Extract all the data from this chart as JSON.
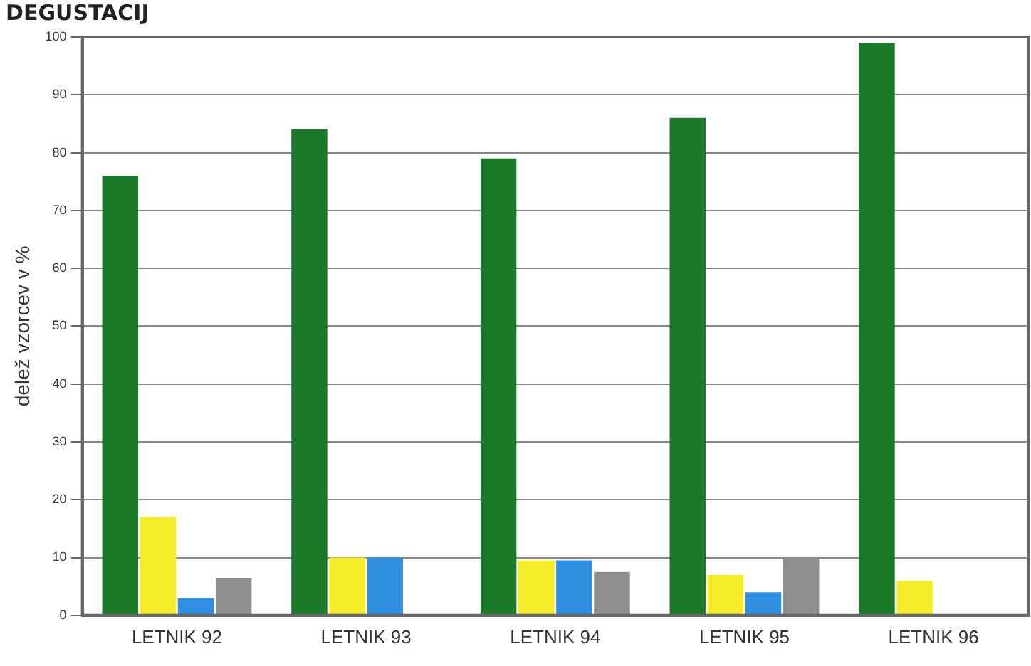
{
  "chart_data": {
    "type": "bar",
    "title": "DEGUSTACIJ",
    "ylabel": "delež vzorcev v %",
    "categories": [
      "LETNIK 92",
      "LETNIK 93",
      "LETNIK 94",
      "LETNIK 95",
      "LETNIK 96"
    ],
    "series": [
      {
        "color": "#1a7a2a",
        "values": [
          76,
          84,
          79,
          86,
          99
        ]
      },
      {
        "color": "#f5ec2a",
        "values": [
          17,
          10,
          9.5,
          7,
          6
        ]
      },
      {
        "color": "#2f8fe0",
        "values": [
          3,
          10,
          9.5,
          4,
          null
        ]
      },
      {
        "color": "#8e8e8e",
        "values": [
          6.5,
          null,
          7.5,
          10,
          null
        ]
      }
    ],
    "ylim": [
      0,
      100
    ],
    "yticks": [
      0,
      10,
      20,
      30,
      40,
      50,
      60,
      70,
      80,
      90,
      100
    ],
    "grid": "y",
    "legend": false
  }
}
